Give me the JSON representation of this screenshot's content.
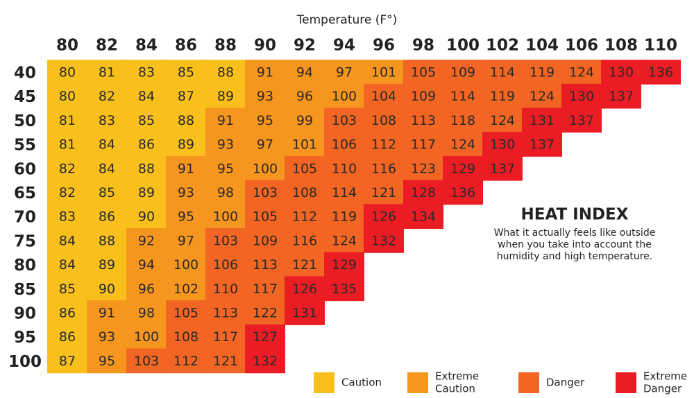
{
  "axis_title": "Temperature (F°)",
  "columns": [
    80,
    82,
    84,
    86,
    88,
    90,
    92,
    94,
    96,
    98,
    100,
    102,
    104,
    106,
    108,
    110
  ],
  "row_labels": [
    40,
    45,
    50,
    55,
    60,
    65,
    70,
    75,
    80,
    85,
    90,
    95,
    100
  ],
  "rows": [
    [
      80,
      81,
      83,
      85,
      88,
      91,
      94,
      97,
      101,
      105,
      109,
      114,
      119,
      124,
      130,
      136
    ],
    [
      80,
      82,
      84,
      87,
      89,
      93,
      96,
      100,
      104,
      109,
      114,
      119,
      124,
      130,
      137
    ],
    [
      81,
      83,
      85,
      88,
      91,
      95,
      99,
      103,
      108,
      113,
      118,
      124,
      131,
      137
    ],
    [
      81,
      84,
      86,
      89,
      93,
      97,
      101,
      106,
      112,
      117,
      124,
      130,
      137
    ],
    [
      82,
      84,
      88,
      91,
      95,
      100,
      105,
      110,
      116,
      123,
      129,
      137
    ],
    [
      82,
      85,
      89,
      93,
      98,
      103,
      108,
      114,
      121,
      128,
      136
    ],
    [
      83,
      86,
      90,
      95,
      100,
      105,
      112,
      119,
      126,
      134
    ],
    [
      84,
      88,
      92,
      97,
      103,
      109,
      116,
      124,
      132
    ],
    [
      84,
      89,
      94,
      100,
      106,
      113,
      121,
      129
    ],
    [
      85,
      90,
      96,
      102,
      110,
      117,
      126,
      135
    ],
    [
      86,
      91,
      98,
      105,
      113,
      122,
      131
    ],
    [
      86,
      93,
      100,
      108,
      117,
      127
    ],
    [
      87,
      95,
      103,
      112,
      121,
      132
    ]
  ],
  "levels": [
    [
      0,
      0,
      0,
      0,
      0,
      1,
      1,
      1,
      1,
      2,
      2,
      2,
      2,
      2,
      3,
      3
    ],
    [
      0,
      0,
      0,
      0,
      0,
      1,
      1,
      1,
      2,
      2,
      2,
      2,
      2,
      3,
      3
    ],
    [
      0,
      0,
      0,
      0,
      1,
      1,
      1,
      2,
      2,
      2,
      2,
      2,
      3,
      3
    ],
    [
      0,
      0,
      0,
      0,
      1,
      1,
      1,
      2,
      2,
      2,
      2,
      3,
      3
    ],
    [
      0,
      0,
      0,
      1,
      1,
      1,
      2,
      2,
      2,
      2,
      3,
      3
    ],
    [
      0,
      0,
      0,
      1,
      1,
      2,
      2,
      2,
      2,
      3,
      3
    ],
    [
      0,
      0,
      0,
      1,
      1,
      2,
      2,
      2,
      3,
      3
    ],
    [
      0,
      0,
      1,
      1,
      2,
      2,
      2,
      2,
      3
    ],
    [
      0,
      0,
      1,
      1,
      2,
      2,
      2,
      3
    ],
    [
      0,
      0,
      1,
      1,
      2,
      2,
      3,
      3
    ],
    [
      0,
      1,
      1,
      2,
      2,
      2,
      3
    ],
    [
      0,
      1,
      1,
      2,
      2,
      3
    ],
    [
      0,
      1,
      2,
      2,
      2,
      3
    ]
  ],
  "info": {
    "title": "HEAT INDEX",
    "lines": [
      "What it actually feels like outside",
      "when you take into account the",
      "humidity and high temperature."
    ]
  },
  "legend": [
    {
      "lines": [
        "Caution"
      ],
      "color": "#f9c01b"
    },
    {
      "lines": [
        "Extreme",
        "Caution"
      ],
      "color": "#f7961f"
    },
    {
      "lines": [
        "Danger"
      ],
      "color": "#f26522"
    },
    {
      "lines": [
        "Extreme",
        "Danger"
      ],
      "color": "#ec1c24"
    }
  ]
}
